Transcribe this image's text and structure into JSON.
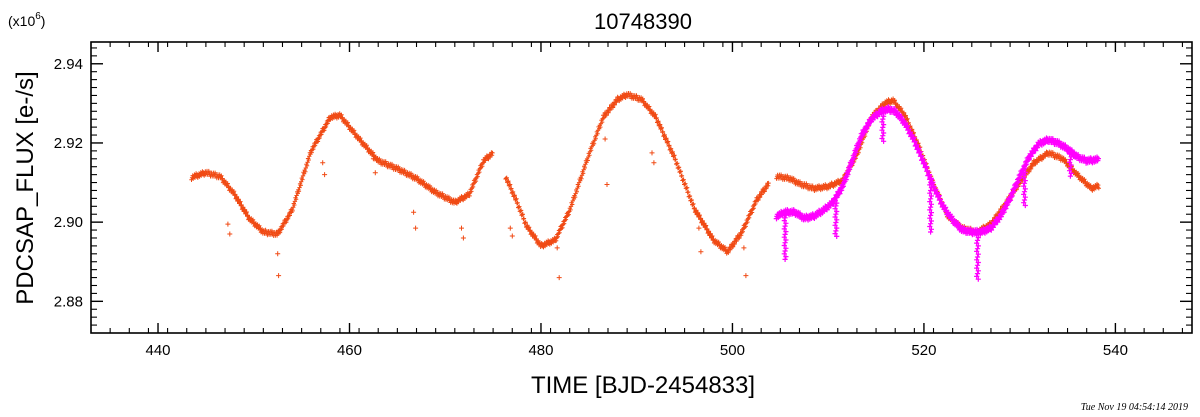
{
  "chart_data": {
    "type": "scatter",
    "title": "10748390",
    "xlabel": "TIME [BJD-2454833]",
    "ylabel": "PDCSAP_FLUX [e-/s]",
    "y_multiplier": "(x10",
    "y_multiplier_exp": "6",
    "y_multiplier_close": ")",
    "xlim": [
      433,
      548
    ],
    "ylim": [
      2.872,
      2.9455
    ],
    "x_ticks": [
      440,
      460,
      480,
      500,
      520,
      540
    ],
    "y_ticks": [
      2.88,
      2.9,
      2.92,
      2.94
    ],
    "x_tick_labels": [
      "440",
      "460",
      "480",
      "500",
      "520",
      "540"
    ],
    "y_tick_labels": [
      "2.88",
      "2.90",
      "2.92",
      "2.94"
    ],
    "grid": false,
    "timestamp": "Tue Nov 19 04:54:14 2019",
    "series": [
      {
        "color": "#f04a14",
        "marker": "plus",
        "segments": [
          {
            "x": [
              443.5,
              445,
              446.5,
              448,
              449.5,
              451,
              452.5,
              454,
              456,
              458,
              459,
              461,
              463,
              465,
              467,
              469,
              471,
              472.5,
              474,
              475
            ],
            "y": [
              2.9113,
              2.9125,
              2.9115,
              2.907,
              2.901,
              2.8975,
              2.897,
              2.903,
              2.918,
              2.9265,
              2.927,
              2.921,
              2.9155,
              2.9135,
              2.911,
              2.9075,
              2.905,
              2.907,
              2.9155,
              2.9175
            ]
          },
          {
            "x": [
              476.3,
              477.5,
              478.5,
              480,
              481.5,
              483,
              485,
              486.5,
              488,
              489,
              490.5,
              492,
              494,
              496,
              498,
              499.5,
              501,
              502.5,
              503.8
            ],
            "y": [
              2.9115,
              2.905,
              2.899,
              2.894,
              2.8955,
              2.903,
              2.917,
              2.9265,
              2.931,
              2.9322,
              2.931,
              2.9265,
              2.916,
              2.9035,
              2.8955,
              2.8925,
              2.8975,
              2.9055,
              2.9098
            ]
          },
          {
            "x": [
              504.6,
              506,
              507,
              508.5,
              510,
              511.5,
              513,
              514.5,
              516,
              516.8,
              518,
              519.5,
              521,
              522.5,
              524,
              525.5,
              527,
              528.5,
              530,
              531.5,
              533,
              534.5,
              536,
              537.5,
              538.3
            ],
            "y": [
              2.9116,
              2.911,
              2.9097,
              2.9085,
              2.909,
              2.9105,
              2.917,
              2.9265,
              2.9302,
              2.9307,
              2.927,
              2.919,
              2.9095,
              2.9015,
              2.8985,
              2.8975,
              2.8995,
              2.9045,
              2.91,
              2.915,
              2.9175,
              2.916,
              2.912,
              2.9085,
              2.9092
            ]
          }
        ],
        "outliers": {
          "x": [
            447.3,
            447.5,
            452.5,
            452.6,
            457.2,
            457.4,
            462.5,
            462.7,
            466.7,
            466.9,
            471.7,
            471.9,
            476.8,
            477.0,
            481.7,
            481.9,
            486.7,
            486.9,
            491.6,
            491.8,
            496.5,
            496.7,
            501.2,
            501.4
          ],
          "y": [
            2.8995,
            2.897,
            2.892,
            2.8865,
            2.915,
            2.912,
            2.916,
            2.9125,
            2.9025,
            2.8985,
            2.8985,
            2.896,
            2.8985,
            2.8965,
            2.8935,
            2.886,
            2.921,
            2.9095,
            2.9175,
            2.915,
            2.8985,
            2.8925,
            2.8935,
            2.8865
          ]
        }
      },
      {
        "color": "#ff00ff",
        "marker": "plus",
        "segments": [
          {
            "x": [
              504.6,
              505.5,
              506.5,
              507.5,
              508.5,
              509.5,
              510.5,
              511.5,
              512.5,
              513.5,
              514.5,
              515.5,
              516.3,
              517,
              518,
              519,
              520,
              521,
              522,
              523,
              524,
              525,
              526,
              527,
              528,
              529,
              530,
              531,
              532,
              533,
              534,
              535,
              536,
              537,
              538.2
            ],
            "y": [
              2.9015,
              2.9025,
              2.9025,
              2.901,
              2.9015,
              2.903,
              2.905,
              2.909,
              2.9155,
              2.922,
              2.926,
              2.928,
              2.9285,
              2.928,
              2.925,
              2.9205,
              2.915,
              2.909,
              2.904,
              2.9005,
              2.898,
              2.8975,
              2.8975,
              2.8985,
              2.9015,
              2.906,
              2.9115,
              2.9165,
              2.9198,
              2.9208,
              2.92,
              2.9185,
              2.9165,
              2.9155,
              2.9158
            ]
          }
        ],
        "dips": {
          "x": [
            505.5,
            510.8,
            515.7,
            520.7,
            525.6,
            530.5,
            535.3
          ],
          "depth": [
            0.012,
            0.01,
            0.008,
            0.014,
            0.012,
            0.01,
            0.007
          ]
        }
      }
    ]
  }
}
